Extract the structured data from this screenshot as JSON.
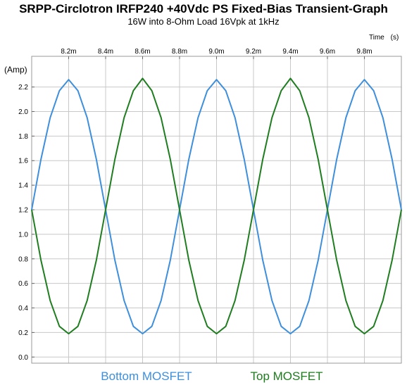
{
  "title": "SRPP-Circlotron IRFP240 +40Vdc PS Fixed-Bias Transient-Graph",
  "subtitle": "16W into 8-Ohm Load 16Vpk at 1kHz",
  "chart_data": {
    "type": "line",
    "xlabel": "Time",
    "xunit": "(s)",
    "ylabel": "(Amp)",
    "xlim": [
      8.0,
      10.0
    ],
    "ylim": [
      -0.05,
      2.45
    ],
    "xticks": [
      8.2,
      8.4,
      8.6,
      8.8,
      9.0,
      9.2,
      9.4,
      9.6,
      9.8
    ],
    "xtick_labels": [
      "8.2m",
      "8.4m",
      "8.6m",
      "8.8m",
      "9.0m",
      "9.2m",
      "9.4m",
      "9.6m",
      "9.8m"
    ],
    "xtick_position": "top",
    "yticks": [
      0.0,
      0.2,
      0.4,
      0.6,
      0.8,
      1.0,
      1.2,
      1.4,
      1.6,
      1.8,
      2.0,
      2.2
    ],
    "ytick_labels": [
      "0.0",
      "0.2",
      "0.4",
      "0.6",
      "0.8",
      "1.0",
      "1.2",
      "1.4",
      "1.6",
      "1.8",
      "2.0",
      "2.2"
    ],
    "grid": true,
    "legend_position": "bottom",
    "x": [
      8.0,
      8.05,
      8.1,
      8.15,
      8.2,
      8.25,
      8.3,
      8.35,
      8.4,
      8.45,
      8.5,
      8.55,
      8.6,
      8.65,
      8.7,
      8.75,
      8.8,
      8.85,
      8.9,
      8.95,
      9.0,
      9.05,
      9.1,
      9.15,
      9.2,
      9.25,
      9.3,
      9.35,
      9.4,
      9.45,
      9.5,
      9.55,
      9.6,
      9.65,
      9.7,
      9.75,
      9.8,
      9.85,
      9.9,
      9.95,
      10.0
    ],
    "series": [
      {
        "name": "Bottom MOSFET",
        "color": "#3d8fdd",
        "values": [
          1.2,
          1.61,
          1.95,
          2.17,
          2.26,
          2.17,
          1.95,
          1.61,
          1.2,
          0.79,
          0.46,
          0.25,
          0.19,
          0.25,
          0.46,
          0.79,
          1.2,
          1.61,
          1.95,
          2.17,
          2.26,
          2.17,
          1.95,
          1.61,
          1.2,
          0.79,
          0.46,
          0.25,
          0.19,
          0.25,
          0.46,
          0.79,
          1.2,
          1.61,
          1.95,
          2.17,
          2.26,
          2.17,
          1.95,
          1.61,
          1.2
        ]
      },
      {
        "name": "Top MOSFET",
        "color": "#1e7d1e",
        "values": [
          1.2,
          0.79,
          0.46,
          0.25,
          0.19,
          0.25,
          0.46,
          0.79,
          1.2,
          1.61,
          1.95,
          2.17,
          2.27,
          2.17,
          1.95,
          1.61,
          1.2,
          0.79,
          0.46,
          0.25,
          0.19,
          0.25,
          0.46,
          0.79,
          1.2,
          1.61,
          1.95,
          2.17,
          2.27,
          2.17,
          1.95,
          1.61,
          1.2,
          0.79,
          0.46,
          0.25,
          0.19,
          0.25,
          0.46,
          0.79,
          1.2
        ]
      }
    ]
  }
}
